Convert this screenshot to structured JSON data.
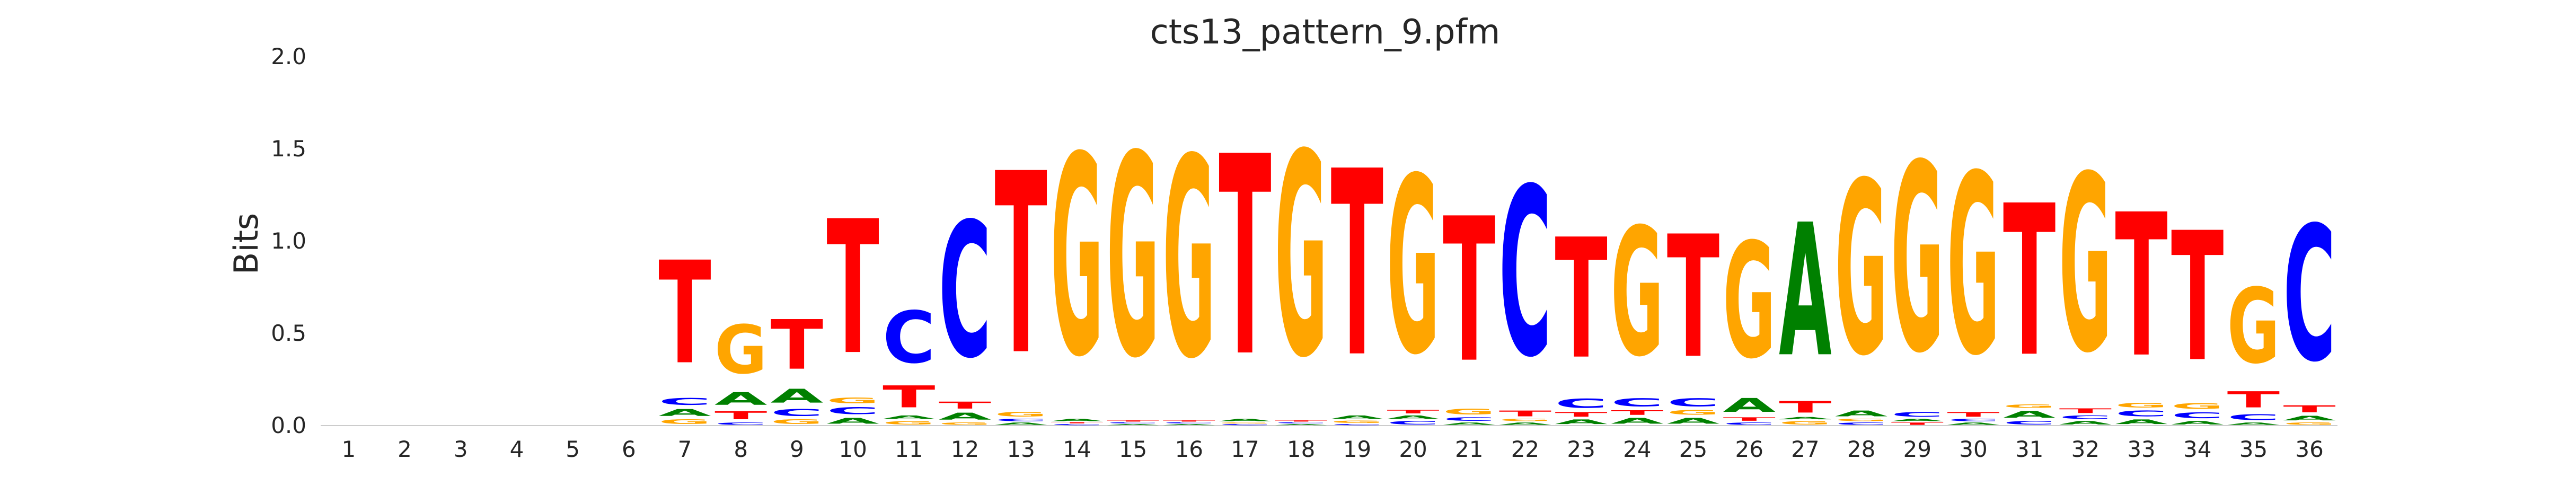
{
  "chart_data": {
    "type": "sequence-logo",
    "title": "cts13_pattern_9.pfm",
    "ylabel": "Bits",
    "xlabel": "",
    "ylim": [
      0,
      2.0
    ],
    "yticks": [
      "0.0",
      "0.5",
      "1.0",
      "1.5",
      "2.0"
    ],
    "positions": [
      "1",
      "2",
      "3",
      "4",
      "5",
      "6",
      "7",
      "8",
      "9",
      "10",
      "11",
      "12",
      "13",
      "14",
      "15",
      "16",
      "17",
      "18",
      "19",
      "20",
      "21",
      "22",
      "23",
      "24",
      "25",
      "26",
      "27",
      "28",
      "29",
      "30",
      "31",
      "32",
      "33",
      "34",
      "35",
      "36"
    ],
    "colors": {
      "A": "#008000",
      "C": "#0000ff",
      "G": "#ffa500",
      "T": "#ff0000"
    },
    "grid": false,
    "stacks": [
      [],
      [],
      [],
      [],
      [],
      [],
      [
        [
          "G",
          0.04
        ],
        [
          "A",
          0.06
        ],
        [
          "C",
          0.06
        ],
        [
          "T",
          0.89
        ]
      ],
      [
        [
          "C",
          0.02
        ],
        [
          "T",
          0.07
        ],
        [
          "A",
          0.11
        ],
        [
          "G",
          0.42
        ]
      ],
      [
        [
          "G",
          0.04
        ],
        [
          "C",
          0.06
        ],
        [
          "A",
          0.12
        ],
        [
          "T",
          0.43
        ]
      ],
      [
        [
          "A",
          0.05
        ],
        [
          "C",
          0.06
        ],
        [
          "G",
          0.05
        ],
        [
          "T",
          1.16
        ]
      ],
      [
        [
          "G",
          0.03
        ],
        [
          "A",
          0.03
        ],
        [
          "T",
          0.19
        ],
        [
          "C",
          0.45
        ]
      ],
      [
        [
          "G",
          0.02
        ],
        [
          "A",
          0.06
        ],
        [
          "T",
          0.06
        ],
        [
          "C",
          1.17
        ]
      ],
      [
        [
          "A",
          0.02
        ],
        [
          "C",
          0.02
        ],
        [
          "G",
          0.04
        ],
        [
          "T",
          1.57
        ]
      ],
      [
        [
          "C",
          0.01
        ],
        [
          "T",
          0.01
        ],
        [
          "A",
          0.02
        ],
        [
          "G",
          1.73
        ]
      ],
      [
        [
          "A",
          0.01
        ],
        [
          "C",
          0.01
        ],
        [
          "T",
          0.01
        ],
        [
          "G",
          1.75
        ]
      ],
      [
        [
          "A",
          0.01
        ],
        [
          "C",
          0.01
        ],
        [
          "T",
          0.01
        ],
        [
          "G",
          1.73
        ]
      ],
      [
        [
          "C",
          0.01
        ],
        [
          "G",
          0.01
        ],
        [
          "A",
          0.02
        ],
        [
          "T",
          1.73
        ]
      ],
      [
        [
          "A",
          0.01
        ],
        [
          "C",
          0.01
        ],
        [
          "T",
          0.01
        ],
        [
          "G",
          1.76
        ]
      ],
      [
        [
          "C",
          0.01
        ],
        [
          "G",
          0.02
        ],
        [
          "A",
          0.03
        ],
        [
          "T",
          1.61
        ]
      ],
      [
        [
          "C",
          0.03
        ],
        [
          "A",
          0.03
        ],
        [
          "T",
          0.03
        ],
        [
          "G",
          1.53
        ]
      ],
      [
        [
          "A",
          0.02
        ],
        [
          "C",
          0.03
        ],
        [
          "G",
          0.05
        ],
        [
          "T",
          1.25
        ]
      ],
      [
        [
          "A",
          0.02
        ],
        [
          "G",
          0.02
        ],
        [
          "T",
          0.05
        ],
        [
          "C",
          1.46
        ]
      ],
      [
        [
          "A",
          0.04
        ],
        [
          "T",
          0.04
        ],
        [
          "C",
          0.08
        ],
        [
          "T",
          1.04
        ]
      ],
      [
        [
          "A",
          0.05
        ],
        [
          "T",
          0.04
        ],
        [
          "C",
          0.07
        ],
        [
          "G",
          1.11
        ]
      ],
      [
        [
          "A",
          0.05
        ],
        [
          "G",
          0.04
        ],
        [
          "C",
          0.07
        ],
        [
          "T",
          1.06
        ]
      ],
      [
        [
          "C",
          0.02
        ],
        [
          "T",
          0.03
        ],
        [
          "A",
          0.12
        ],
        [
          "G",
          1.0
        ]
      ],
      [
        [
          "G",
          0.03
        ],
        [
          "A",
          0.02
        ],
        [
          "T",
          0.1
        ],
        [
          "A",
          1.15
        ]
      ],
      [
        [
          "C",
          0.02
        ],
        [
          "G",
          0.02
        ],
        [
          "A",
          0.05
        ],
        [
          "G",
          1.5
        ]
      ],
      [
        [
          "T",
          0.02
        ],
        [
          "A",
          0.02
        ],
        [
          "C",
          0.04
        ],
        [
          "G",
          1.63
        ]
      ],
      [
        [
          "A",
          0.02
        ],
        [
          "C",
          0.02
        ],
        [
          "T",
          0.04
        ],
        [
          "G",
          1.56
        ]
      ],
      [
        [
          "C",
          0.03
        ],
        [
          "A",
          0.06
        ],
        [
          "G",
          0.03
        ],
        [
          "T",
          1.31
        ]
      ],
      [
        [
          "A",
          0.03
        ],
        [
          "C",
          0.03
        ],
        [
          "T",
          0.04
        ],
        [
          "G",
          1.53
        ]
      ],
      [
        [
          "A",
          0.04
        ],
        [
          "C",
          0.05
        ],
        [
          "G",
          0.04
        ],
        [
          "T",
          1.24
        ]
      ],
      [
        [
          "A",
          0.03
        ],
        [
          "C",
          0.05
        ],
        [
          "G",
          0.05
        ],
        [
          "T",
          1.12
        ]
      ],
      [
        [
          "A",
          0.02
        ],
        [
          "C",
          0.05
        ],
        [
          "T",
          0.14
        ],
        [
          "G",
          0.65
        ]
      ],
      [
        [
          "G",
          0.02
        ],
        [
          "A",
          0.04
        ],
        [
          "T",
          0.06
        ],
        [
          "C",
          1.17
        ]
      ]
    ]
  }
}
